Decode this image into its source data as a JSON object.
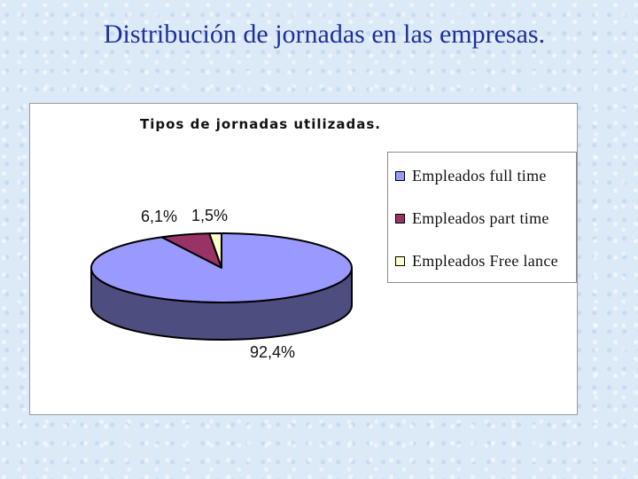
{
  "slide": {
    "title": "Distribución de jornadas en las empresas."
  },
  "chart_data": {
    "type": "pie",
    "title": "Tipos de jornadas utilizadas.",
    "categories": [
      "Empleados full time",
      "Empleados part time",
      "Empleados Free lance"
    ],
    "values": [
      92.4,
      6.1,
      1.5
    ],
    "value_labels": [
      "92,4%",
      "6,1%",
      "1,5%"
    ],
    "colors": [
      "#9999ff",
      "#993366",
      "#ffffcc"
    ],
    "three_d": true,
    "legend_position": "right"
  }
}
